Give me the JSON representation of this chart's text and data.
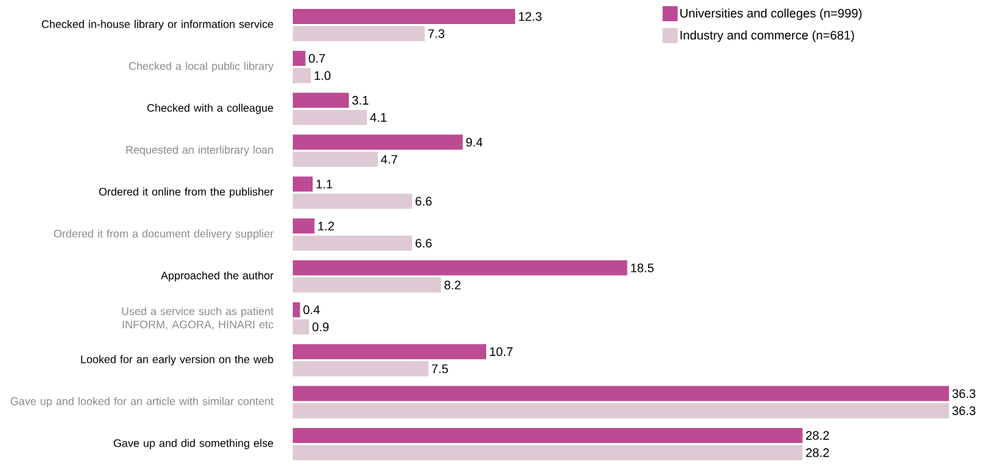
{
  "chart_data": {
    "type": "bar",
    "orientation": "horizontal",
    "categories": [
      "Checked in-house library or information service",
      "Checked a local public library",
      "Checked with a colleague",
      "Requested an interlibrary loan",
      "Ordered it online from the publisher",
      "Ordered it from a document delivery supplier",
      "Approached the author",
      "Used a service such as patient INFORM, AGORA, HINARI etc",
      "Looked for an early version on the web",
      "Gave up and looked for an article with similar content",
      "Gave up and did something else"
    ],
    "series": [
      {
        "name": "Universities and colleges (n=999)",
        "color": "#bc4b93",
        "values": [
          12.3,
          0.7,
          3.1,
          9.4,
          1.1,
          1.2,
          18.5,
          0.4,
          10.7,
          36.3,
          28.2
        ],
        "value_labels": [
          "12.3",
          "0.7",
          "3.1",
          "9.4",
          "1.1",
          "1.2",
          "18.5",
          "0.4",
          "10.7",
          "36.3",
          "28.2"
        ]
      },
      {
        "name": "Industry and commerce (n=681)",
        "color": "#dfc9d5",
        "values": [
          7.3,
          1.0,
          4.1,
          4.7,
          6.6,
          6.6,
          8.2,
          0.9,
          7.5,
          36.3,
          28.2
        ],
        "value_labels": [
          "7.3",
          "1.0",
          "4.1",
          "4.7",
          "6.6",
          "6.6",
          "8.2",
          "0.9",
          "7.5",
          "36.3",
          "28.2"
        ]
      }
    ],
    "legend": "top right"
  }
}
